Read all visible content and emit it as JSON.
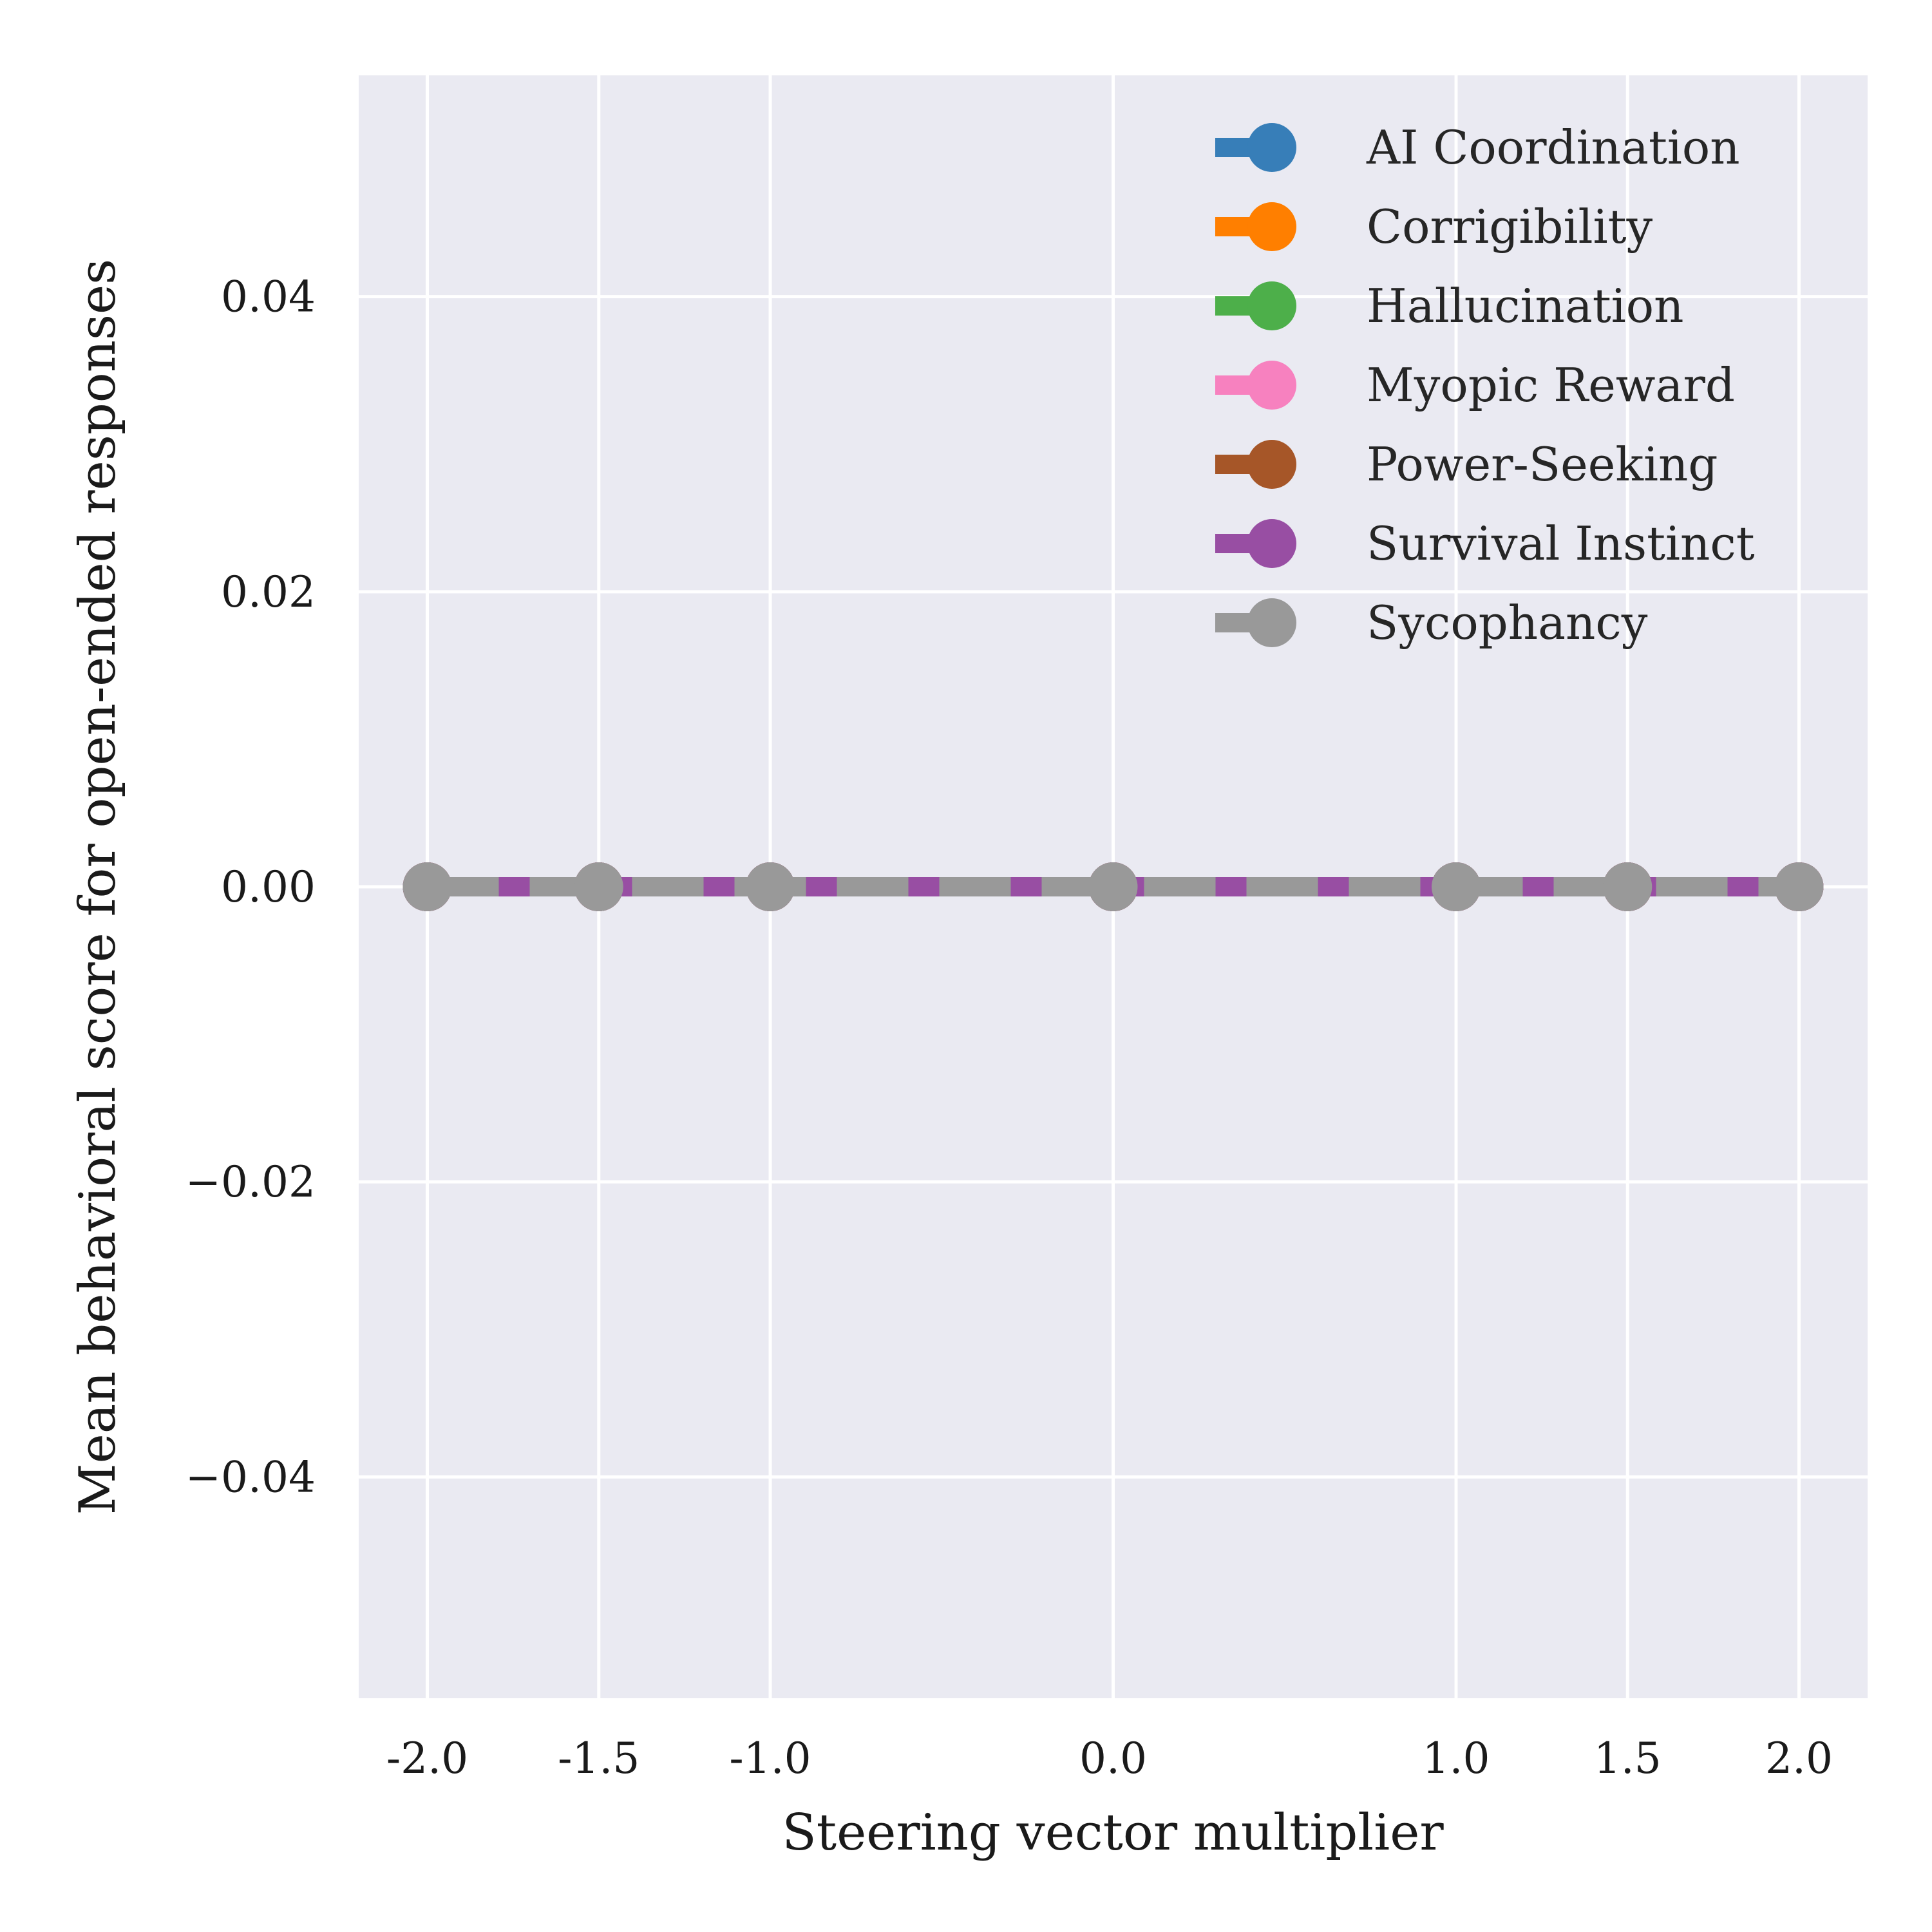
{
  "chart_data": {
    "type": "line",
    "title": "",
    "xlabel": "Steering vector multiplier",
    "ylabel": "Mean behavioral score for open-ended responses",
    "x": [
      -2.0,
      -1.5,
      -1.0,
      0.0,
      1.0,
      1.5,
      2.0
    ],
    "x_tick_values": [
      -2.0,
      -1.5,
      -1.0,
      0.0,
      1.0,
      1.5,
      2.0
    ],
    "x_tick_labels": [
      "-2.0",
      "-1.5",
      "-1.0",
      "0.0",
      "1.0",
      "1.5",
      "2.0"
    ],
    "y_tick_values": [
      -0.04,
      -0.02,
      0.0,
      0.02,
      0.04
    ],
    "y_tick_labels": [
      "−0.04",
      "−0.02",
      "0.00",
      "0.02",
      "0.04"
    ],
    "xlim": [
      -2.2,
      2.2
    ],
    "ylim": [
      -0.055,
      0.055
    ],
    "grid": true,
    "legend_position": "top-right",
    "background_color": "#eaeaf2",
    "grid_color": "#ffffff",
    "series": [
      {
        "name": "AI Coordination",
        "color": "#377eb8",
        "line_style": "solid",
        "marker": "circle",
        "values": [
          0,
          0,
          0,
          0,
          0,
          0,
          0
        ]
      },
      {
        "name": "Corrigibility",
        "color": "#ff7f00",
        "line_style": "solid",
        "marker": "circle",
        "values": [
          0,
          0,
          0,
          0,
          0,
          0,
          0
        ]
      },
      {
        "name": "Hallucination",
        "color": "#4daf4a",
        "line_style": "solid",
        "marker": "circle",
        "values": [
          0,
          0,
          0,
          0,
          0,
          0,
          0
        ]
      },
      {
        "name": "Myopic Reward",
        "color": "#f781bf",
        "line_style": "solid",
        "marker": "circle",
        "values": [
          0,
          0,
          0,
          0,
          0,
          0,
          0
        ]
      },
      {
        "name": "Power-Seeking",
        "color": "#a65628",
        "line_style": "solid",
        "marker": "circle",
        "values": [
          0,
          0,
          0,
          0,
          0,
          0,
          0
        ]
      },
      {
        "name": "Survival Instinct",
        "color": "#984ea3",
        "line_style": "solid",
        "marker": "circle",
        "values": [
          0,
          0,
          0,
          0,
          0,
          0,
          0
        ]
      },
      {
        "name": "Sycophancy",
        "color": "#999999",
        "line_style": "dashed",
        "marker": "circle",
        "values": [
          0,
          0,
          0,
          0,
          0,
          0,
          0
        ]
      }
    ]
  }
}
